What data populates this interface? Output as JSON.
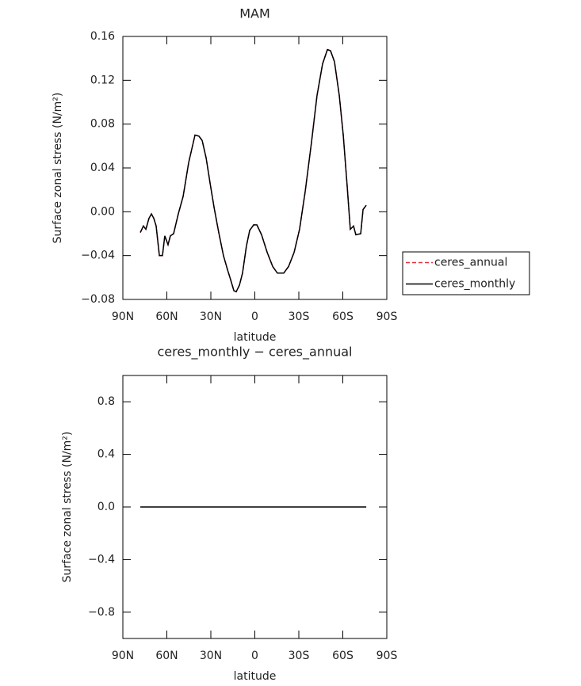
{
  "chart_data": [
    {
      "type": "line",
      "title": "MAM",
      "xlabel": "latitude",
      "ylabel": "Surface zonal stress (N/m²)",
      "x": [
        78.1,
        76,
        74.3,
        72.2,
        70.5,
        68.9,
        67.3,
        65.1,
        63,
        61.4,
        59.2,
        57.6,
        55.4,
        52.2,
        48.9,
        45.1,
        40.8,
        38.1,
        35.9,
        33.2,
        30.5,
        27.8,
        24.6,
        21.4,
        18.6,
        16.5,
        14.3,
        12.7,
        10.5,
        8.4,
        5.7,
        3.5,
        0.8,
        -1.4,
        -4.6,
        -8.4,
        -12.2,
        -15.4,
        -19.7,
        -23,
        -26.8,
        -30.5,
        -34.3,
        -38.6,
        -42.4,
        -46.2,
        -49.5,
        -51.6,
        -54.3,
        -57.6,
        -60.3,
        -63,
        -65.1,
        -67.3,
        -68.9,
        -72.2,
        -73.8,
        -76
      ],
      "series": [
        {
          "name": "ceres_annual",
          "color": "#e8303a",
          "linestyle": "dashed",
          "values": [
            -0.019,
            -0.013,
            -0.016,
            -0.006,
            -0.002,
            -0.006,
            -0.013,
            -0.04,
            -0.04,
            -0.022,
            -0.03,
            -0.022,
            -0.02,
            -0.002,
            0.014,
            0.045,
            0.07,
            0.069,
            0.065,
            0.049,
            0.026,
            0.004,
            -0.019,
            -0.04,
            -0.053,
            -0.062,
            -0.072,
            -0.073,
            -0.067,
            -0.056,
            -0.031,
            -0.017,
            -0.012,
            -0.012,
            -0.021,
            -0.037,
            -0.05,
            -0.056,
            -0.056,
            -0.05,
            -0.037,
            -0.016,
            0.018,
            0.063,
            0.106,
            0.135,
            0.148,
            0.147,
            0.137,
            0.106,
            0.07,
            0.023,
            -0.016,
            -0.013,
            -0.021,
            -0.02,
            0.002,
            0.006
          ]
        },
        {
          "name": "ceres_monthly",
          "color": "#000000",
          "linestyle": "solid",
          "values": [
            -0.019,
            -0.013,
            -0.016,
            -0.006,
            -0.002,
            -0.006,
            -0.013,
            -0.04,
            -0.04,
            -0.022,
            -0.03,
            -0.022,
            -0.02,
            -0.002,
            0.014,
            0.045,
            0.07,
            0.069,
            0.065,
            0.049,
            0.026,
            0.004,
            -0.019,
            -0.04,
            -0.053,
            -0.062,
            -0.072,
            -0.073,
            -0.067,
            -0.056,
            -0.031,
            -0.017,
            -0.012,
            -0.012,
            -0.021,
            -0.037,
            -0.05,
            -0.056,
            -0.056,
            -0.05,
            -0.037,
            -0.016,
            0.018,
            0.063,
            0.106,
            0.135,
            0.148,
            0.147,
            0.137,
            0.106,
            0.07,
            0.023,
            -0.016,
            -0.013,
            -0.021,
            -0.02,
            0.002,
            0.006
          ]
        }
      ],
      "xlim": [
        90,
        -90
      ],
      "xticks": [
        {
          "value": 90,
          "label": "90N"
        },
        {
          "value": 60,
          "label": "60N"
        },
        {
          "value": 30,
          "label": "30N"
        },
        0,
        {
          "value": -30,
          "label": "30S"
        },
        {
          "value": -60,
          "label": "60S"
        },
        {
          "value": -90,
          "label": "90S"
        }
      ],
      "ylim": [
        -0.08,
        0.16
      ],
      "yticks": [
        {
          "value": -0.08,
          "label": "−0.08"
        },
        {
          "value": -0.04,
          "label": "−0.04"
        },
        {
          "value": 0,
          "label": "0.00"
        },
        0.04,
        0.08,
        0.12,
        0.16
      ],
      "legend": "right"
    },
    {
      "type": "line",
      "title": "ceres_monthly − ceres_annual",
      "xlabel": "latitude",
      "ylabel": "Surface zonal stress (N/m²)",
      "x": [
        78.1,
        -76
      ],
      "values": [
        0,
        0
      ],
      "color": "#000000",
      "xlim": [
        90,
        -90
      ],
      "xticks": [
        {
          "value": 90,
          "label": "90N"
        },
        {
          "value": 60,
          "label": "60N"
        },
        {
          "value": 30,
          "label": "30N"
        },
        0,
        {
          "value": -30,
          "label": "30S"
        },
        {
          "value": -60,
          "label": "60S"
        },
        {
          "value": -90,
          "label": "90S"
        }
      ],
      "ylim": [
        -1,
        1
      ],
      "yticks": [
        {
          "value": -0.8,
          "label": "−0.8"
        },
        {
          "value": -0.4,
          "label": "−0.4"
        },
        {
          "value": 0,
          "label": "0.0"
        },
        0.4,
        0.8
      ]
    }
  ]
}
